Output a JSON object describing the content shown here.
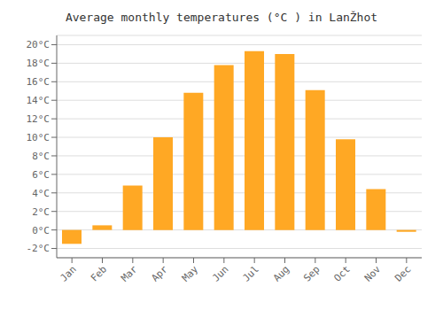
{
  "chart_data": {
    "type": "bar",
    "title": "Average monthly temperatures (°C ) in LanŽhot",
    "categories": [
      "Jan",
      "Feb",
      "Mar",
      "Apr",
      "May",
      "Jun",
      "Jul",
      "Aug",
      "Sep",
      "Oct",
      "Nov",
      "Dec"
    ],
    "values": [
      -1.5,
      0.5,
      4.8,
      10.0,
      14.8,
      17.8,
      19.3,
      19.0,
      15.1,
      9.8,
      4.4,
      -0.2
    ],
    "color": "#FFA824",
    "ylim": [
      -3,
      21
    ],
    "yticks": [
      {
        "value": -2,
        "label": "-2°C"
      },
      {
        "value": 0,
        "label": "0°C"
      },
      {
        "value": 2,
        "label": "2°C"
      },
      {
        "value": 4,
        "label": "4°C"
      },
      {
        "value": 6,
        "label": "6°C"
      },
      {
        "value": 8,
        "label": "8°C"
      },
      {
        "value": 10,
        "label": "10°C"
      },
      {
        "value": 12,
        "label": "12°C"
      },
      {
        "value": 14,
        "label": "14°C"
      },
      {
        "value": 16,
        "label": "16°C"
      },
      {
        "value": 18,
        "label": "18°C"
      },
      {
        "value": 20,
        "label": "20°C"
      }
    ],
    "grid": true
  }
}
